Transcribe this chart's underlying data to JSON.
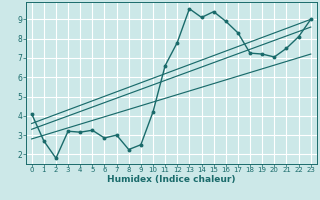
{
  "title": "",
  "xlabel": "Humidex (Indice chaleur)",
  "ylabel": "",
  "background_color": "#cce8e8",
  "grid_color": "#b0d8d8",
  "line_color": "#1a6b6b",
  "xlim": [
    -0.5,
    23.5
  ],
  "ylim": [
    1.5,
    9.9
  ],
  "xticks": [
    0,
    1,
    2,
    3,
    4,
    5,
    6,
    7,
    8,
    9,
    10,
    11,
    12,
    13,
    14,
    15,
    16,
    17,
    18,
    19,
    20,
    21,
    22,
    23
  ],
  "yticks": [
    2,
    3,
    4,
    5,
    6,
    7,
    8,
    9
  ],
  "series1_x": [
    0,
    1,
    2,
    3,
    4,
    5,
    6,
    7,
    8,
    9,
    10,
    11,
    12,
    13,
    14,
    15,
    16,
    17,
    18,
    19,
    20,
    21,
    22,
    23
  ],
  "series1_y": [
    4.1,
    2.7,
    1.8,
    3.2,
    3.15,
    3.25,
    2.85,
    3.0,
    2.25,
    2.5,
    4.2,
    6.6,
    7.8,
    9.55,
    9.1,
    9.4,
    8.9,
    8.3,
    7.25,
    7.2,
    7.05,
    7.5,
    8.1,
    9.0
  ],
  "line1_x": [
    0,
    23
  ],
  "line1_y": [
    2.8,
    7.2
  ],
  "line2_x": [
    0,
    23
  ],
  "line2_y": [
    3.3,
    8.6
  ],
  "line3_x": [
    0,
    23
  ],
  "line3_y": [
    3.6,
    9.0
  ]
}
